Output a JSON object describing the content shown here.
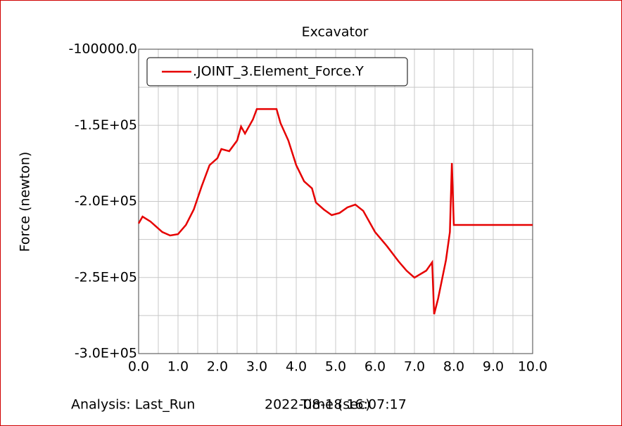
{
  "chart_data": {
    "type": "line",
    "title": "Excavator",
    "ylabel": "Force (newton)",
    "xlabel": "Time (sec)",
    "analysis": "Analysis:  Last_Run",
    "timestamp": "2022-08-18 16:07:17",
    "ylim": [
      -300000,
      -100000
    ],
    "yticks": [
      {
        "value": -100000,
        "label": "-100000.0"
      },
      {
        "value": -150000,
        "label": "-1.5E+05"
      },
      {
        "value": -200000,
        "label": "-2.0E+05"
      },
      {
        "value": -250000,
        "label": "-2.5E+05"
      },
      {
        "value": -300000,
        "label": "-3.0E+05"
      }
    ],
    "yminor": [
      -125000,
      -175000,
      -225000,
      -275000
    ],
    "xlim": [
      0,
      10
    ],
    "xticks": [
      {
        "value": 0,
        "label": "0.0"
      },
      {
        "value": 1,
        "label": "1.0"
      },
      {
        "value": 2,
        "label": "2.0"
      },
      {
        "value": 3,
        "label": "3.0"
      },
      {
        "value": 4,
        "label": "4.0"
      },
      {
        "value": 5,
        "label": "5.0"
      },
      {
        "value": 6,
        "label": "6.0"
      },
      {
        "value": 7,
        "label": "7.0"
      },
      {
        "value": 8,
        "label": "8.0"
      },
      {
        "value": 9,
        "label": "9.0"
      },
      {
        "value": 10,
        "label": "10.0"
      }
    ],
    "xminor": [
      0.5,
      1.5,
      2.5,
      3.5,
      4.5,
      5.5,
      6.5,
      7.5,
      8.5,
      9.5
    ],
    "grid": true,
    "legend": "top-left",
    "series": [
      {
        "name": ".JOINT_3.Element_Force.Y",
        "color": "#e60000",
        "x": [
          0.0,
          0.1,
          0.3,
          0.6,
          0.8,
          1.0,
          1.2,
          1.4,
          1.6,
          1.8,
          2.0,
          2.1,
          2.3,
          2.5,
          2.6,
          2.7,
          2.9,
          3.0,
          3.5,
          3.6,
          3.8,
          4.0,
          4.2,
          4.4,
          4.5,
          4.7,
          4.9,
          5.1,
          5.3,
          5.5,
          5.7,
          6.0,
          6.3,
          6.6,
          6.8,
          7.0,
          7.3,
          7.45,
          7.5,
          7.6,
          7.8,
          7.9,
          7.95,
          8.0,
          10.0
        ],
        "values": [
          -214500,
          -210000,
          -213200,
          -220100,
          -222400,
          -221500,
          -215500,
          -205300,
          -190100,
          -176200,
          -171600,
          -165600,
          -167000,
          -160000,
          -150800,
          -155400,
          -146200,
          -139300,
          -139300,
          -148500,
          -160000,
          -176200,
          -186800,
          -191400,
          -200700,
          -205300,
          -209000,
          -207600,
          -203900,
          -202100,
          -206200,
          -220100,
          -229300,
          -239500,
          -245500,
          -250100,
          -245500,
          -240000,
          -274100,
          -264000,
          -238600,
          -220100,
          -174800,
          -215500,
          -215500
        ]
      }
    ]
  }
}
